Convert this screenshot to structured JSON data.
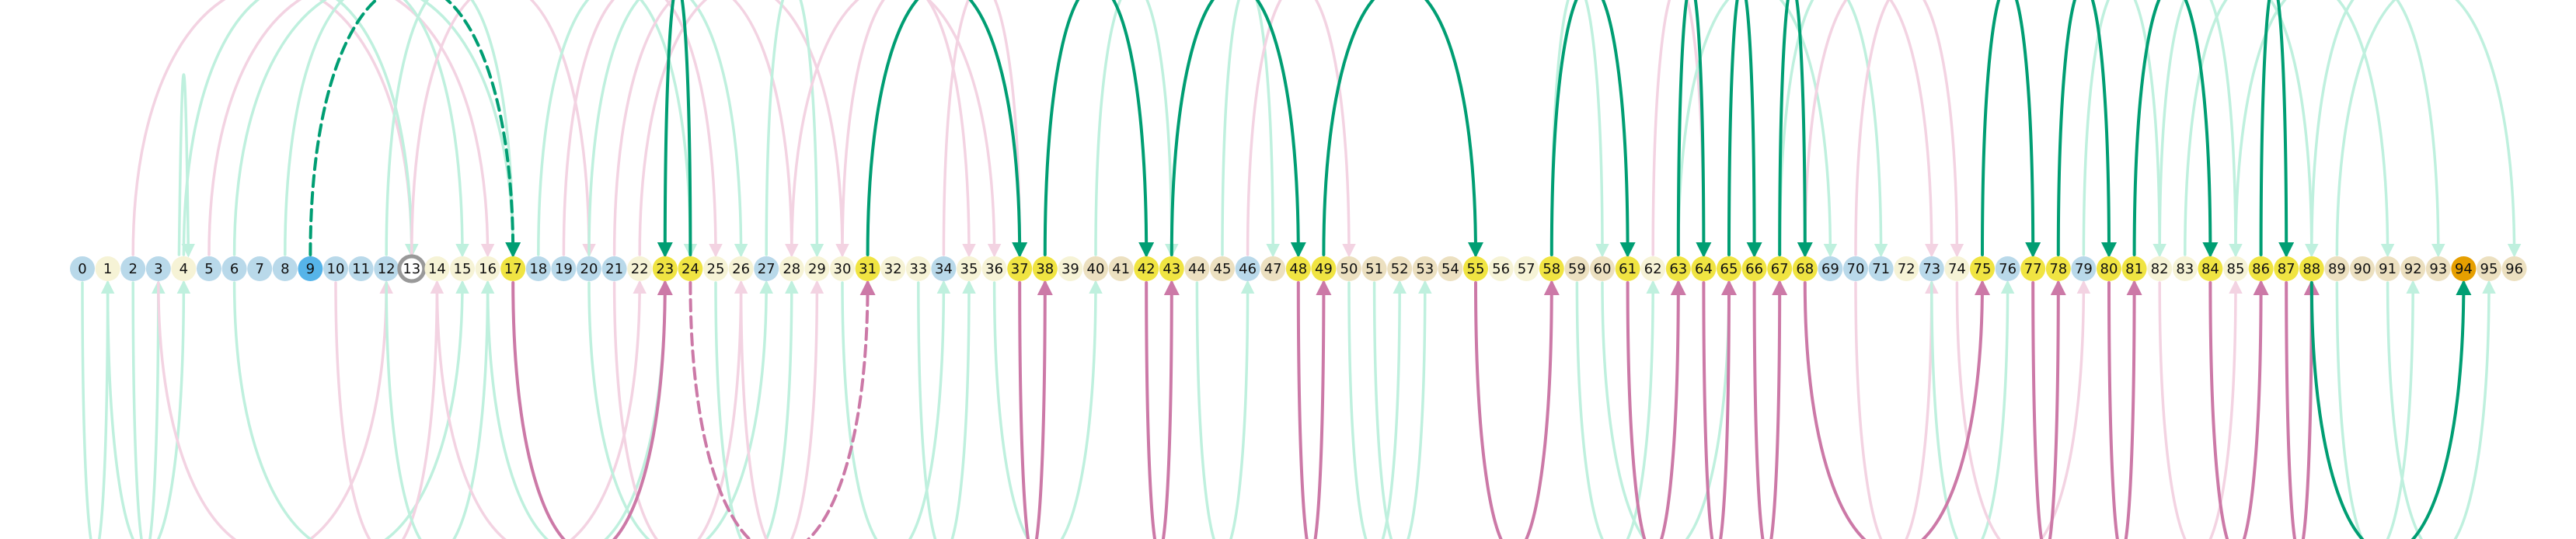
{
  "node_labels": [
    "0",
    "1",
    "2",
    "3",
    "4",
    "5",
    "6",
    "7",
    "8",
    "9",
    "10",
    "11",
    "12",
    "13",
    "14",
    "15",
    "16",
    "17",
    "18",
    "19",
    "20",
    "21",
    "22",
    "23",
    "24",
    "25",
    "26",
    "27",
    "28",
    "29",
    "30",
    "31",
    "32",
    "33",
    "34",
    "35",
    "36",
    "37",
    "38",
    "39",
    "40",
    "41",
    "42",
    "43",
    "44",
    "45",
    "46",
    "47",
    "48",
    "49",
    "50",
    "51",
    "52",
    "53",
    "54",
    "55",
    "56",
    "57",
    "58",
    "59",
    "60",
    "61",
    "62",
    "63",
    "64",
    "65",
    "66",
    "67",
    "68",
    "69",
    "70",
    "71",
    "72",
    "73",
    "74",
    "75",
    "76",
    "77",
    "78",
    "79",
    "80",
    "81",
    "82",
    "83",
    "84",
    "85",
    "86",
    "87",
    "88",
    "89",
    "90",
    "91",
    "92",
    "93",
    "94",
    "95",
    "96"
  ],
  "colors": {
    "blue": "#b9d9ea",
    "cream": "#f6f3d6",
    "tan": "#ece0c0",
    "yellow": "#f0e442",
    "selected": "#56b4e9",
    "target": "#e69f00",
    "green": "#009e73",
    "green_faint": "#bff0de",
    "pink": "#cc79a7",
    "pink_faint": "#f3d3e2",
    "ring": "#999999"
  },
  "node_types": {
    "blue": [
      0,
      2,
      3,
      5,
      6,
      7,
      8,
      10,
      11,
      12,
      18,
      19,
      20,
      21,
      27,
      34,
      46,
      69,
      70,
      71,
      73,
      76,
      79
    ],
    "cream": [
      1,
      4,
      14,
      15,
      16,
      22,
      25,
      26,
      28,
      29,
      30,
      32,
      33,
      35,
      36,
      39,
      56,
      57,
      62,
      72,
      74,
      82,
      83,
      85
    ],
    "tan": [
      40,
      41,
      44,
      45,
      47,
      50,
      51,
      52,
      53,
      54,
      59,
      60,
      89,
      90,
      91,
      92,
      93,
      95,
      96
    ],
    "yellow": [
      17,
      23,
      24,
      31,
      37,
      38,
      42,
      43,
      48,
      49,
      55,
      58,
      61,
      63,
      64,
      65,
      66,
      67,
      68,
      75,
      77,
      78,
      80,
      81,
      84,
      86,
      87,
      88
    ],
    "selected": [
      9
    ],
    "target": [
      94
    ],
    "ring": [
      13
    ]
  },
  "arcs_strong_above": [
    {
      "from": 9,
      "to": 17,
      "style": "dashed"
    },
    {
      "from": 24,
      "to": 23,
      "style": "solid"
    },
    {
      "from": 31,
      "to": 37,
      "style": "solid"
    },
    {
      "from": 38,
      "to": 42,
      "style": "solid"
    },
    {
      "from": 43,
      "to": 48,
      "style": "solid"
    },
    {
      "from": 49,
      "to": 55,
      "style": "solid"
    },
    {
      "from": 58,
      "to": 61,
      "style": "solid"
    },
    {
      "from": 63,
      "to": 64,
      "style": "solid"
    },
    {
      "from": 65,
      "to": 66,
      "style": "solid"
    },
    {
      "from": 67,
      "to": 68,
      "style": "solid"
    },
    {
      "from": 75,
      "to": 77,
      "style": "solid"
    },
    {
      "from": 78,
      "to": 80,
      "style": "solid"
    },
    {
      "from": 81,
      "to": 84,
      "style": "solid"
    },
    {
      "from": 86,
      "to": 87,
      "style": "solid"
    }
  ],
  "arcs_strong_below": [
    {
      "from": 17,
      "to": 23,
      "color": "pink",
      "style": "solid"
    },
    {
      "from": 24,
      "to": 31,
      "color": "pink",
      "style": "dashed"
    },
    {
      "from": 37,
      "to": 38,
      "color": "pink",
      "style": "solid"
    },
    {
      "from": 42,
      "to": 43,
      "color": "pink",
      "style": "solid"
    },
    {
      "from": 48,
      "to": 49,
      "color": "pink",
      "style": "solid"
    },
    {
      "from": 55,
      "to": 58,
      "color": "pink",
      "style": "solid"
    },
    {
      "from": 61,
      "to": 63,
      "color": "pink",
      "style": "solid"
    },
    {
      "from": 64,
      "to": 65,
      "color": "pink",
      "style": "solid"
    },
    {
      "from": 66,
      "to": 67,
      "color": "pink",
      "style": "solid"
    },
    {
      "from": 68,
      "to": 75,
      "color": "pink",
      "style": "solid"
    },
    {
      "from": 77,
      "to": 78,
      "color": "pink",
      "style": "solid"
    },
    {
      "from": 80,
      "to": 81,
      "color": "pink",
      "style": "solid"
    },
    {
      "from": 84,
      "to": 86,
      "color": "pink",
      "style": "solid"
    },
    {
      "from": 87,
      "to": 88,
      "color": "pink",
      "style": "solid"
    },
    {
      "from": 88,
      "to": 94,
      "color": "green",
      "style": "solid"
    }
  ],
  "arcs_faint_above": [
    {
      "from": 4,
      "to": 4,
      "color": "green"
    },
    {
      "from": 2,
      "to": 13,
      "color": "pink"
    },
    {
      "from": 4,
      "to": 13,
      "color": "green"
    },
    {
      "from": 5,
      "to": 16,
      "color": "pink"
    },
    {
      "from": 6,
      "to": 17,
      "color": "green"
    },
    {
      "from": 8,
      "to": 15,
      "color": "green"
    },
    {
      "from": 12,
      "to": 17,
      "color": "green"
    },
    {
      "from": 13,
      "to": 20,
      "color": "pink"
    },
    {
      "from": 18,
      "to": 24,
      "color": "green"
    },
    {
      "from": 19,
      "to": 25,
      "color": "pink"
    },
    {
      "from": 20,
      "to": 26,
      "color": "green"
    },
    {
      "from": 21,
      "to": 28,
      "color": "pink"
    },
    {
      "from": 22,
      "to": 30,
      "color": "pink"
    },
    {
      "from": 27,
      "to": 29,
      "color": "green"
    },
    {
      "from": 28,
      "to": 36,
      "color": "pink"
    },
    {
      "from": 30,
      "to": 35,
      "color": "pink"
    },
    {
      "from": 34,
      "to": 37,
      "color": "pink"
    },
    {
      "from": 40,
      "to": 43,
      "color": "green"
    },
    {
      "from": 45,
      "to": 47,
      "color": "green"
    },
    {
      "from": 46,
      "to": 50,
      "color": "pink"
    },
    {
      "from": 58,
      "to": 60,
      "color": "green"
    },
    {
      "from": 62,
      "to": 64,
      "color": "pink"
    },
    {
      "from": 63,
      "to": 69,
      "color": "green"
    },
    {
      "from": 67,
      "to": 71,
      "color": "green"
    },
    {
      "from": 68,
      "to": 73,
      "color": "pink"
    },
    {
      "from": 70,
      "to": 74,
      "color": "pink"
    },
    {
      "from": 79,
      "to": 82,
      "color": "green"
    },
    {
      "from": 82,
      "to": 85,
      "color": "green"
    },
    {
      "from": 83,
      "to": 88,
      "color": "green"
    },
    {
      "from": 85,
      "to": 91,
      "color": "green"
    },
    {
      "from": 88,
      "to": 93,
      "color": "green"
    },
    {
      "from": 89,
      "to": 96,
      "color": "green"
    }
  ],
  "arcs_faint_below": [
    {
      "from": 0,
      "to": 1,
      "color": "green"
    },
    {
      "from": 1,
      "to": 4,
      "color": "green"
    },
    {
      "from": 2,
      "to": 3,
      "color": "green"
    },
    {
      "from": 3,
      "to": 12,
      "color": "pink"
    },
    {
      "from": 6,
      "to": 15,
      "color": "green"
    },
    {
      "from": 10,
      "to": 14,
      "color": "pink"
    },
    {
      "from": 12,
      "to": 16,
      "color": "green"
    },
    {
      "from": 14,
      "to": 22,
      "color": "pink"
    },
    {
      "from": 16,
      "to": 23,
      "color": "green"
    },
    {
      "from": 20,
      "to": 27,
      "color": "green"
    },
    {
      "from": 21,
      "to": 26,
      "color": "pink"
    },
    {
      "from": 25,
      "to": 28,
      "color": "green"
    },
    {
      "from": 26,
      "to": 29,
      "color": "pink"
    },
    {
      "from": 30,
      "to": 34,
      "color": "green"
    },
    {
      "from": 33,
      "to": 35,
      "color": "green"
    },
    {
      "from": 36,
      "to": 40,
      "color": "green"
    },
    {
      "from": 44,
      "to": 46,
      "color": "green"
    },
    {
      "from": 50,
      "to": 52,
      "color": "green"
    },
    {
      "from": 51,
      "to": 53,
      "color": "green"
    },
    {
      "from": 59,
      "to": 62,
      "color": "green"
    },
    {
      "from": 60,
      "to": 65,
      "color": "green"
    },
    {
      "from": 70,
      "to": 73,
      "color": "pink"
    },
    {
      "from": 73,
      "to": 76,
      "color": "green"
    },
    {
      "from": 74,
      "to": 79,
      "color": "pink"
    },
    {
      "from": 82,
      "to": 85,
      "color": "pink"
    },
    {
      "from": 89,
      "to": 92,
      "color": "green"
    },
    {
      "from": 91,
      "to": 95,
      "color": "green"
    }
  ]
}
